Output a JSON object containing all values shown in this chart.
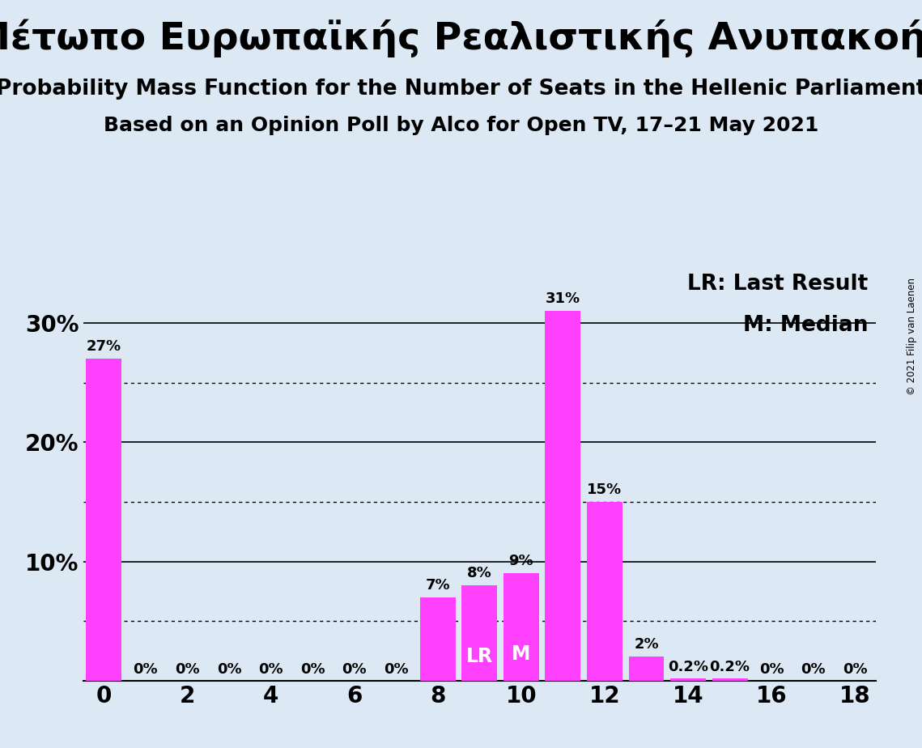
{
  "title": "Μέτωπο Ευρωπαϊκής Ρεαλιστικής Ανυπακοής",
  "subtitle1": "Probability Mass Function for the Number of Seats in the Hellenic Parliament",
  "subtitle2": "Based on an Opinion Poll by Alco for Open TV, 17–21 May 2021",
  "copyright": "© 2021 Filip van Laenen",
  "seats": [
    0,
    1,
    2,
    3,
    4,
    5,
    6,
    7,
    8,
    9,
    10,
    11,
    12,
    13,
    14,
    15,
    16,
    17,
    18
  ],
  "probabilities": [
    0.27,
    0.0,
    0.0,
    0.0,
    0.0,
    0.0,
    0.0,
    0.0,
    0.07,
    0.08,
    0.09,
    0.31,
    0.15,
    0.02,
    0.002,
    0.002,
    0.0,
    0.0,
    0.0
  ],
  "labels": [
    "27%",
    "0%",
    "0%",
    "0%",
    "0%",
    "0%",
    "0%",
    "0%",
    "7%",
    "8%",
    "9%",
    "31%",
    "15%",
    "2%",
    "0.2%",
    "0.2%",
    "0%",
    "0%",
    "0%"
  ],
  "bar_color": "#FF40FF",
  "background_color": "#dce9f5",
  "lr_seat": 9,
  "median_seat": 10,
  "lr_label": "LR",
  "median_label": "M",
  "legend_lr": "LR: Last Result",
  "legend_m": "M: Median",
  "xlim": [
    -0.5,
    18.5
  ],
  "ylim": [
    0,
    0.345
  ],
  "yticks": [
    0.1,
    0.2,
    0.3
  ],
  "ytick_labels": [
    "10%",
    "20%",
    "30%"
  ],
  "xticks": [
    0,
    2,
    4,
    6,
    8,
    10,
    12,
    14,
    16,
    18
  ],
  "solid_gridlines": [
    0.1,
    0.2,
    0.3
  ],
  "dotted_gridlines": [
    0.05,
    0.15,
    0.25
  ],
  "title_fontsize": 34,
  "subtitle1_fontsize": 19,
  "subtitle2_fontsize": 18,
  "label_fontsize": 13,
  "tick_fontsize": 20,
  "legend_fontsize": 19,
  "bar_label_outside_color": "#000000",
  "bar_label_inside_color": "#ffffff"
}
